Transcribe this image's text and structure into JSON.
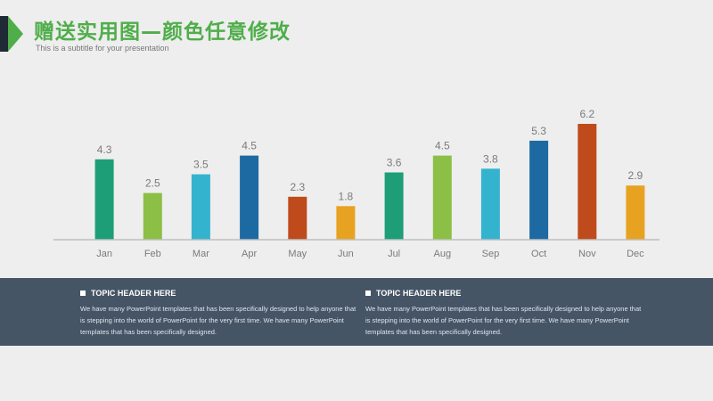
{
  "header": {
    "title": "赠送实用图—颜色任意修改",
    "subtitle": "This is a subtitle for your presentation"
  },
  "colors": {
    "accent_green": "#4fae4a",
    "accent_dark": "#1f2a36",
    "footer_bg": "#465566"
  },
  "chart_data": {
    "type": "bar",
    "categories": [
      "Jan",
      "Feb",
      "Mar",
      "Apr",
      "May",
      "Jun",
      "Jul",
      "Aug",
      "Sep",
      "Oct",
      "Nov",
      "Dec"
    ],
    "values": [
      4.3,
      2.5,
      3.5,
      4.5,
      2.3,
      1.8,
      3.6,
      4.5,
      3.8,
      5.3,
      6.2,
      2.9
    ],
    "value_labels": [
      "4.3",
      "2.5",
      "3.5",
      "4.5",
      "2.3",
      "1.8",
      "3.6",
      "4.5",
      "3.8",
      "5.3",
      "6.2",
      "2.9"
    ],
    "bar_colors": [
      "#1e9e77",
      "#8cbf45",
      "#34b3cf",
      "#1d6aa2",
      "#bf4a1c",
      "#e8a221",
      "#1e9e77",
      "#8cbf45",
      "#34b3cf",
      "#1d6aa2",
      "#bf4a1c",
      "#e8a221"
    ],
    "title": "",
    "xlabel": "",
    "ylabel": "",
    "ylim": [
      0,
      6.2
    ],
    "grid": false,
    "legend": "none"
  },
  "footer": {
    "columns": [
      {
        "heading": "TOPIC HEADER HERE",
        "body": "We have many PowerPoint templates that has been specifically designed to help anyone that is stepping into the world of PowerPoint for the very first time. We have many PowerPoint templates that has been specifically designed."
      },
      {
        "heading": "TOPIC HEADER HERE",
        "body": "We have many PowerPoint templates that has been specifically designed to help anyone that is stepping into the world of PowerPoint for the very first time. We have many PowerPoint templates that has been specifically designed."
      }
    ]
  }
}
